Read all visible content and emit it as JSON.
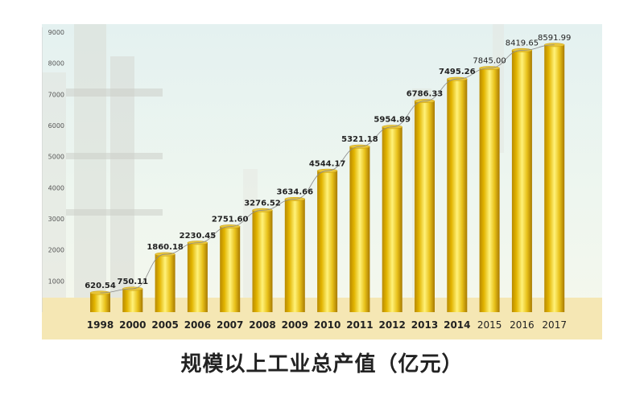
{
  "chart_data": {
    "type": "bar",
    "title": "规模以上工业总产值（亿元）",
    "xlabel": "",
    "ylabel": "",
    "categories": [
      "1998",
      "2000",
      "2005",
      "2006",
      "2007",
      "2008",
      "2009",
      "2010",
      "2011",
      "2012",
      "2013",
      "2014",
      "2015",
      "2016",
      "2017"
    ],
    "values": [
      620.54,
      750.11,
      1860.18,
      2230.45,
      2751.6,
      3276.52,
      3634.66,
      4544.17,
      5321.18,
      5954.89,
      6786.33,
      7495.26,
      7845.0,
      8419.65,
      8591.99
    ],
    "value_labels": [
      "620.54",
      "750.11",
      "1860.18",
      "2230.45",
      "2751.60",
      "3276.52",
      "3634.66",
      "4544.17",
      "5321.18",
      "5954.89",
      "6786.33",
      "7495.26",
      "7845.00",
      "8419.65",
      "8591.99"
    ],
    "ylim": [
      0,
      9000
    ],
    "yticks": [
      1000,
      2000,
      3000,
      4000,
      5000,
      6000,
      7000,
      8000,
      9000
    ],
    "ytick_labels": [
      "1000",
      "2000",
      "3000",
      "4000",
      "5000",
      "6000",
      "7000",
      "8000",
      "9000"
    ],
    "trend_line": true,
    "grid": false,
    "colors": {
      "bar_dark": "#b88a00",
      "bar_mid": "#f2d21a",
      "bar_light": "#fff27a",
      "ground": "#f5e7b4",
      "trend": "#8a8a8a"
    }
  }
}
